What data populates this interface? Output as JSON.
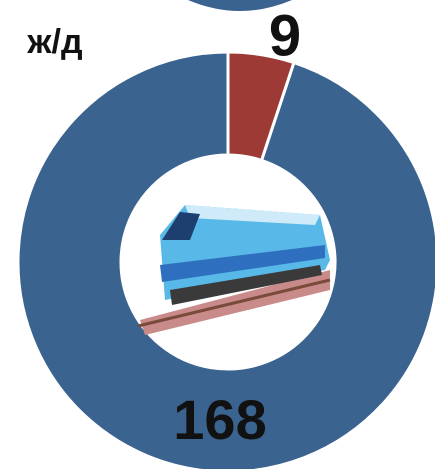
{
  "chart_data": {
    "type": "donut",
    "title": "ж/д",
    "categories": [
      null,
      null
    ],
    "values": [
      168,
      9
    ],
    "colors": [
      "#3a6390",
      "#9e3a36"
    ]
  }
}
